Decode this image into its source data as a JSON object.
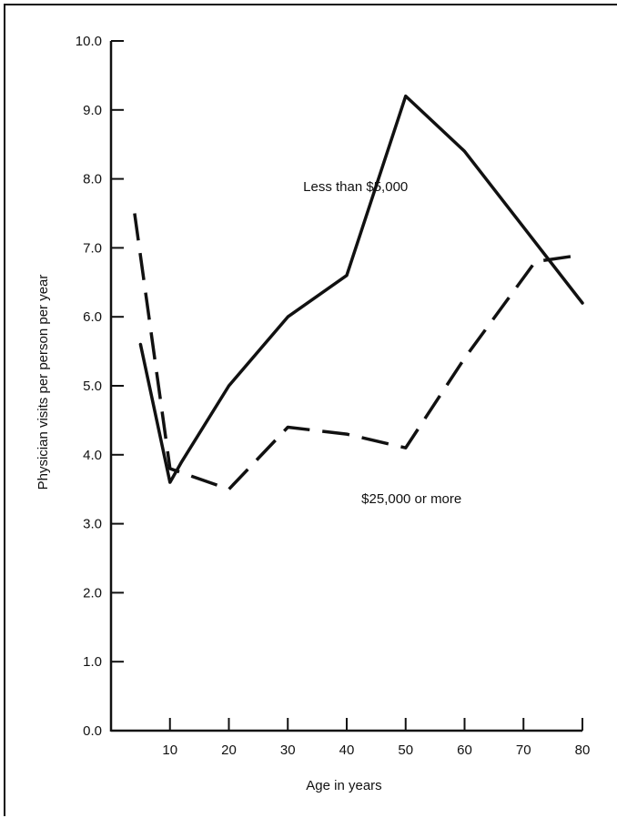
{
  "chart_data": {
    "type": "line",
    "title": "",
    "xlabel": "Age in years",
    "ylabel": "Physician visits per person per year",
    "xlim": [
      0,
      80
    ],
    "ylim": [
      0,
      10
    ],
    "x_ticks": [
      10,
      20,
      30,
      40,
      50,
      60,
      70,
      80
    ],
    "x_tick_labels": [
      "10",
      "20",
      "30",
      "40",
      "50",
      "60",
      "70",
      "80"
    ],
    "y_ticks": [
      0,
      1,
      2,
      3,
      4,
      5,
      6,
      7,
      8,
      9,
      10
    ],
    "y_tick_labels": [
      "0.0",
      "1.0",
      "2.0",
      "3.0",
      "4.0",
      "5.0",
      "6.0",
      "7.0",
      "8.0",
      "9.0",
      "10.0"
    ],
    "grid": false,
    "legend": "none",
    "series": [
      {
        "name": "Less than $5,000",
        "style": "solid",
        "color": "#111111",
        "points": [
          [
            5,
            5.6
          ],
          [
            10,
            3.6
          ],
          [
            12,
            3.9
          ],
          [
            20,
            5.0
          ],
          [
            30,
            6.0
          ],
          [
            40,
            6.6
          ],
          [
            50,
            9.2
          ],
          [
            60,
            8.4
          ],
          [
            70,
            7.3
          ],
          [
            80,
            6.2
          ]
        ]
      },
      {
        "name": "$25,000 or more",
        "style": "dashed",
        "color": "#111111",
        "points": [
          [
            4,
            7.5
          ],
          [
            10,
            3.8
          ],
          [
            20,
            3.5
          ],
          [
            30,
            4.4
          ],
          [
            40,
            4.3
          ],
          [
            50,
            4.1
          ],
          [
            60,
            5.4
          ],
          [
            72,
            6.8
          ],
          [
            80,
            6.9
          ]
        ]
      }
    ],
    "annotations": [
      {
        "text": "Less than $5,000",
        "x": 41.5,
        "y": 7.82
      },
      {
        "text": "$25,000 or more",
        "x": 51,
        "y": 3.3
      }
    ]
  }
}
